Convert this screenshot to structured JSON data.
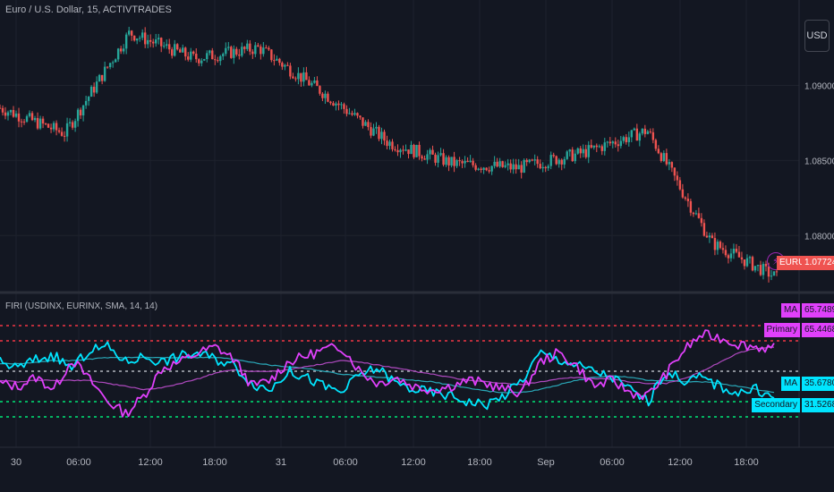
{
  "header": {
    "symbol_title": "Euro / U.S. Dollar, 15, ACTIVTRADES",
    "currency_button": "USD"
  },
  "indicator": {
    "title": "FIRI (USDINX, EURINX, SMA, 14, 14)"
  },
  "price_axis": {
    "ticks": [
      "1.09000",
      "1.08500",
      "1.08000"
    ],
    "last_price": "1.07724",
    "symbol_tag": "EURUSD"
  },
  "indicator_axis": {
    "tags": [
      {
        "label": "MA",
        "value": "65.74894",
        "bg": "#e040fb"
      },
      {
        "label": "Primary",
        "value": "65.44680",
        "bg": "#e040fb"
      },
      {
        "label": "MA",
        "value": "35.67808",
        "bg": "#00e5ff"
      },
      {
        "label": "Secondary",
        "value": "31.52687",
        "bg": "#00e5ff"
      }
    ]
  },
  "time_axis": {
    "ticks": [
      "30",
      "06:00",
      "12:00",
      "18:00",
      "31",
      "06:00",
      "12:00",
      "18:00",
      "Sep",
      "06:00",
      "12:00",
      "18:00"
    ]
  },
  "colors": {
    "up": "#26a69a",
    "down": "#ef5350",
    "primary": "#e040fb",
    "secondary": "#00e5ff",
    "background": "#131722"
  },
  "chart_data": [
    {
      "type": "candlestick",
      "title": "Euro / U.S. Dollar, 15, ACTIVTRADES",
      "ylim": [
        1.0765,
        1.0945
      ],
      "yticks": [
        1.09,
        1.085,
        1.08
      ],
      "last_value": 1.07724,
      "x": [
        "Aug 30 00:00",
        "Aug 30 06:00",
        "Aug 30 12:00",
        "Aug 30 18:00",
        "Aug 31 00:00",
        "Aug 31 06:00",
        "Aug 31 12:00",
        "Aug 31 18:00",
        "Sep 1 00:00",
        "Sep 1 06:00",
        "Sep 1 12:00",
        "Sep 1 18:00",
        "Sep 1 21:00"
      ],
      "close_path": [
        1.0885,
        1.0868,
        1.0935,
        1.0918,
        1.0925,
        1.0895,
        1.0862,
        1.0848,
        1.0845,
        1.0855,
        1.087,
        1.0795,
        1.0772
      ]
    },
    {
      "type": "line",
      "title": "FIRI (USDINX, EURINX, SMA, 14, 14)",
      "ylim": [
        0,
        100
      ],
      "hlines": [
        {
          "value": 80,
          "color": "#f23645"
        },
        {
          "value": 70,
          "color": "#f23645"
        },
        {
          "value": 50,
          "color": "#b2b5be"
        },
        {
          "value": 30,
          "color": "#00e676"
        },
        {
          "value": 20,
          "color": "#00e676"
        }
      ],
      "series": [
        {
          "name": "Primary",
          "color": "#e040fb",
          "values": [
            42,
            40,
            46,
            38,
            58,
            44,
            30,
            22,
            34,
            52,
            56,
            62,
            66,
            58,
            40,
            44,
            56,
            60,
            64,
            66,
            50,
            42,
            46,
            40,
            38,
            40,
            44,
            42,
            38,
            36,
            56,
            62,
            54,
            40,
            44,
            36,
            34,
            48,
            64,
            74,
            72,
            68,
            66,
            65
          ]
        },
        {
          "name": "Secondary",
          "color": "#00e5ff",
          "values": [
            56,
            52,
            58,
            60,
            52,
            64,
            66,
            56,
            60,
            56,
            60,
            62,
            58,
            54,
            42,
            38,
            50,
            46,
            40,
            36,
            48,
            52,
            42,
            38,
            36,
            34,
            30,
            28,
            34,
            44,
            62,
            58,
            54,
            50,
            46,
            38,
            30,
            50,
            44,
            46,
            40,
            36,
            38,
            32
          ]
        },
        {
          "name": "MA",
          "color": "#b04ac0",
          "values": [
            44,
            43,
            44,
            44,
            44,
            44,
            42,
            40,
            38,
            39,
            42,
            45,
            49,
            51,
            50,
            50,
            51,
            53,
            55,
            57,
            56,
            54,
            52,
            50,
            48,
            46,
            44,
            43,
            42,
            41,
            43,
            45,
            46,
            45,
            45,
            43,
            42,
            42,
            45,
            50,
            56,
            62,
            65,
            66
          ]
        },
        {
          "name": "MA",
          "color": "#2aa8b8",
          "values": [
            55,
            55,
            56,
            57,
            57,
            58,
            59,
            59,
            59,
            59,
            59,
            59,
            59,
            58,
            56,
            54,
            53,
            52,
            50,
            48,
            47,
            46,
            45,
            44,
            43,
            41,
            39,
            37,
            36,
            36,
            38,
            41,
            44,
            46,
            47,
            46,
            44,
            44,
            43,
            43,
            42,
            40,
            38,
            36
          ]
        }
      ]
    }
  ]
}
